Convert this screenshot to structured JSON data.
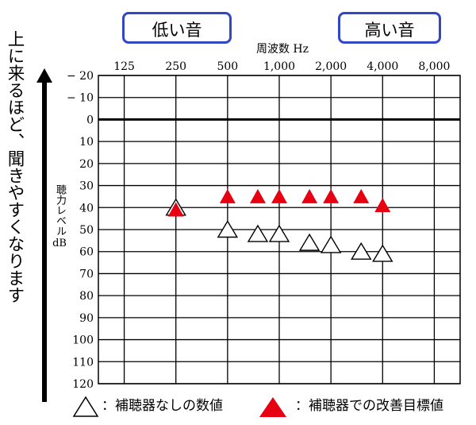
{
  "side_text": "上に来るほど、聞きやすくなります",
  "label_low": "低い音",
  "label_high": "高い音",
  "legend": {
    "unaided": "：補聴器なしの数値",
    "target": "：補聴器での改善目標値"
  },
  "colors": {
    "target": "#e60012",
    "unaided_fill": "#ffffff",
    "pill_border": "#3347c4"
  },
  "chart_data": {
    "type": "scatter",
    "title": "",
    "xlabel": "周波数 Hz",
    "ylabel_vertical": "聴力レベル",
    "ylabel_unit": "dB",
    "x_scale": "log2",
    "x_ticks": [
      125,
      250,
      500,
      1000,
      2000,
      4000,
      8000
    ],
    "x_tick_labels": [
      "125",
      "250",
      "500",
      "1,000",
      "2,000",
      "4,000",
      "8,000"
    ],
    "y_ticks": [
      -20,
      -10,
      0,
      10,
      20,
      30,
      40,
      50,
      60,
      70,
      80,
      90,
      100,
      110,
      120
    ],
    "y_tick_labels": [
      "− 20",
      "− 10",
      "0",
      "10",
      "20",
      "30",
      "40",
      "50",
      "60",
      "70",
      "80",
      "90",
      "100",
      "110",
      "120"
    ],
    "ylim": [
      -20,
      120
    ],
    "y_inverted": true,
    "grid": true,
    "zero_line_bold": true,
    "series": [
      {
        "marker": "open-triangle",
        "points": [
          {
            "x": 250,
            "y": 40
          },
          {
            "x": 500,
            "y": 50
          },
          {
            "x": 750,
            "y": 52
          },
          {
            "x": 1000,
            "y": 52
          },
          {
            "x": 1500,
            "y": 56
          },
          {
            "x": 2000,
            "y": 57
          },
          {
            "x": 3000,
            "y": 60
          },
          {
            "x": 4000,
            "y": 61
          }
        ]
      },
      {
        "marker": "filled-triangle",
        "points": [
          {
            "x": 250,
            "y": 41
          },
          {
            "x": 500,
            "y": 35
          },
          {
            "x": 750,
            "y": 35
          },
          {
            "x": 1000,
            "y": 35
          },
          {
            "x": 1500,
            "y": 35
          },
          {
            "x": 2000,
            "y": 35
          },
          {
            "x": 3000,
            "y": 35
          },
          {
            "x": 4000,
            "y": 39
          }
        ]
      }
    ]
  }
}
